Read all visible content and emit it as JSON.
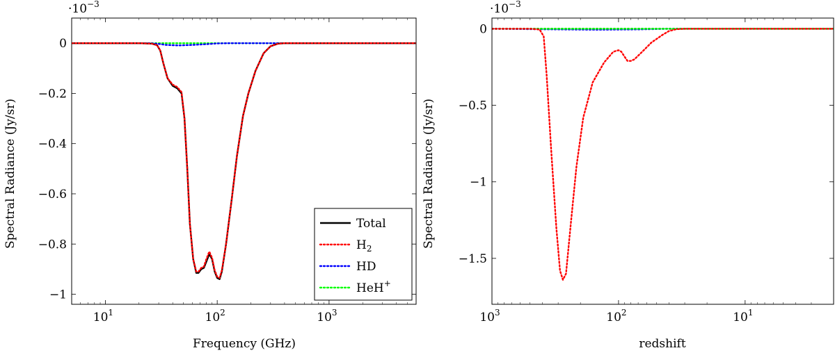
{
  "chart_data": [
    {
      "type": "line",
      "xscale": "log",
      "title": "",
      "xlabel": "Frequency (GHz)",
      "ylabel": "Spectral Radiance (Jy/sr)",
      "multiplier": "·10",
      "multiplier_exp": "−3",
      "xlim": [
        5,
        6000
      ],
      "ylim": [
        -1.04,
        0.1
      ],
      "xticks": [
        {
          "value": 10,
          "base": "10",
          "exp": "1"
        },
        {
          "value": 100,
          "base": "10",
          "exp": "2"
        },
        {
          "value": 1000,
          "base": "10",
          "exp": "3"
        }
      ],
      "yticks": [
        {
          "value": 0,
          "label": "0"
        },
        {
          "value": -0.2,
          "label": "−0.2"
        },
        {
          "value": -0.4,
          "label": "−0.4"
        },
        {
          "value": -0.6,
          "label": "−0.6"
        },
        {
          "value": -0.8,
          "label": "−0.8"
        },
        {
          "value": -1,
          "label": "−1"
        }
      ],
      "legend": {
        "position": "bottom-right",
        "entries": [
          {
            "label": "Total",
            "sub": "",
            "sup": ""
          },
          {
            "label": "H",
            "sub": "2",
            "sup": ""
          },
          {
            "label": "HD",
            "sub": "",
            "sup": ""
          },
          {
            "label": "HeH",
            "sub": "",
            "sup": "+"
          }
        ]
      },
      "series": [
        {
          "name": "Total",
          "color": "#000000",
          "style": "solid",
          "width": 2.4,
          "points": [
            [
              5,
              0
            ],
            [
              20,
              0
            ],
            [
              26,
              -0.002
            ],
            [
              29,
              -0.008
            ],
            [
              31,
              -0.03
            ],
            [
              33,
              -0.08
            ],
            [
              36,
              -0.14
            ],
            [
              40,
              -0.17
            ],
            [
              44,
              -0.18
            ],
            [
              48,
              -0.2
            ],
            [
              51,
              -0.3
            ],
            [
              54,
              -0.5
            ],
            [
              57,
              -0.72
            ],
            [
              61,
              -0.86
            ],
            [
              65,
              -0.915
            ],
            [
              68,
              -0.915
            ],
            [
              72,
              -0.9
            ],
            [
              76,
              -0.895
            ],
            [
              80,
              -0.87
            ],
            [
              85,
              -0.84
            ],
            [
              90,
              -0.86
            ],
            [
              95,
              -0.91
            ],
            [
              100,
              -0.935
            ],
            [
              105,
              -0.94
            ],
            [
              110,
              -0.91
            ],
            [
              120,
              -0.8
            ],
            [
              135,
              -0.62
            ],
            [
              150,
              -0.45
            ],
            [
              170,
              -0.29
            ],
            [
              190,
              -0.2
            ],
            [
              220,
              -0.11
            ],
            [
              260,
              -0.04
            ],
            [
              300,
              -0.012
            ],
            [
              350,
              -0.002
            ],
            [
              400,
              0
            ],
            [
              1000,
              0
            ],
            [
              6000,
              0
            ]
          ]
        },
        {
          "name": "H2",
          "color": "#ff0000",
          "style": "dotted",
          "width": 2.4,
          "points": [
            [
              5,
              0
            ],
            [
              20,
              0
            ],
            [
              26,
              -0.002
            ],
            [
              29,
              -0.008
            ],
            [
              31,
              -0.03
            ],
            [
              33,
              -0.08
            ],
            [
              36,
              -0.14
            ],
            [
              40,
              -0.165
            ],
            [
              44,
              -0.175
            ],
            [
              48,
              -0.195
            ],
            [
              51,
              -0.3
            ],
            [
              54,
              -0.5
            ],
            [
              57,
              -0.72
            ],
            [
              61,
              -0.86
            ],
            [
              65,
              -0.91
            ],
            [
              68,
              -0.91
            ],
            [
              72,
              -0.895
            ],
            [
              76,
              -0.89
            ],
            [
              80,
              -0.86
            ],
            [
              85,
              -0.83
            ],
            [
              90,
              -0.855
            ],
            [
              95,
              -0.905
            ],
            [
              100,
              -0.93
            ],
            [
              105,
              -0.935
            ],
            [
              110,
              -0.905
            ],
            [
              120,
              -0.8
            ],
            [
              135,
              -0.62
            ],
            [
              150,
              -0.45
            ],
            [
              170,
              -0.29
            ],
            [
              190,
              -0.2
            ],
            [
              220,
              -0.11
            ],
            [
              260,
              -0.04
            ],
            [
              300,
              -0.012
            ],
            [
              350,
              -0.002
            ],
            [
              400,
              0
            ],
            [
              1000,
              0
            ],
            [
              6000,
              0
            ]
          ]
        },
        {
          "name": "HD",
          "color": "#0000ff",
          "style": "dotted",
          "width": 2.4,
          "points": [
            [
              5,
              0
            ],
            [
              25,
              0
            ],
            [
              30,
              -0.003
            ],
            [
              35,
              -0.007
            ],
            [
              45,
              -0.009
            ],
            [
              60,
              -0.007
            ],
            [
              80,
              -0.004
            ],
            [
              100,
              -0.001
            ],
            [
              130,
              0
            ],
            [
              6000,
              0
            ]
          ]
        },
        {
          "name": "HeH+",
          "color": "#00ff00",
          "style": "dotted",
          "width": 2.4,
          "points": [
            [
              5,
              0
            ],
            [
              6000,
              0
            ]
          ]
        }
      ]
    },
    {
      "type": "line",
      "xscale": "log",
      "xreversed": true,
      "title": "",
      "xlabel": "redshift",
      "ylabel": "Spectral Radiance (Jy/sr)",
      "multiplier": "·10",
      "multiplier_exp": "−3",
      "xlim": [
        1000,
        2
      ],
      "ylim": [
        -1.8,
        0.07
      ],
      "xticks": [
        {
          "value": 1000,
          "base": "10",
          "exp": "3"
        },
        {
          "value": 100,
          "base": "10",
          "exp": "2"
        },
        {
          "value": 10,
          "base": "10",
          "exp": "1"
        }
      ],
      "yticks": [
        {
          "value": 0,
          "label": "0"
        },
        {
          "value": -0.5,
          "label": "−0.5"
        },
        {
          "value": -1,
          "label": "−1"
        },
        {
          "value": -1.5,
          "label": "−1.5"
        }
      ],
      "series": [
        {
          "name": "Total",
          "color": "#000000",
          "style": "dotted",
          "width": 2.4,
          "points": [
            [
              1000,
              0
            ],
            [
              2,
              0
            ]
          ]
        },
        {
          "name": "H2",
          "color": "#ff0000",
          "style": "dotted",
          "width": 2.4,
          "points": [
            [
              1000,
              0
            ],
            [
              500,
              0
            ],
            [
              420,
              -0.005
            ],
            [
              390,
              -0.05
            ],
            [
              370,
              -0.3
            ],
            [
              340,
              -0.8
            ],
            [
              310,
              -1.3
            ],
            [
              290,
              -1.58
            ],
            [
              275,
              -1.64
            ],
            [
              260,
              -1.6
            ],
            [
              240,
              -1.3
            ],
            [
              215,
              -0.9
            ],
            [
              190,
              -0.58
            ],
            [
              160,
              -0.35
            ],
            [
              130,
              -0.22
            ],
            [
              110,
              -0.15
            ],
            [
              100,
              -0.14
            ],
            [
              95,
              -0.15
            ],
            [
              90,
              -0.18
            ],
            [
              85,
              -0.21
            ],
            [
              80,
              -0.21
            ],
            [
              75,
              -0.2
            ],
            [
              65,
              -0.15
            ],
            [
              55,
              -0.09
            ],
            [
              45,
              -0.04
            ],
            [
              40,
              -0.015
            ],
            [
              35,
              -0.003
            ],
            [
              30,
              0
            ],
            [
              2,
              0
            ]
          ]
        },
        {
          "name": "HD",
          "color": "#0000ff",
          "style": "dotted",
          "width": 2.4,
          "points": [
            [
              1000,
              0
            ],
            [
              300,
              -0.004
            ],
            [
              150,
              -0.006
            ],
            [
              70,
              -0.004
            ],
            [
              40,
              0
            ],
            [
              2,
              0
            ]
          ]
        },
        {
          "name": "HeH+",
          "color": "#00ff00",
          "style": "dotted",
          "width": 2.4,
          "points": [
            [
              1000,
              0
            ],
            [
              2,
              0
            ]
          ]
        }
      ]
    }
  ]
}
